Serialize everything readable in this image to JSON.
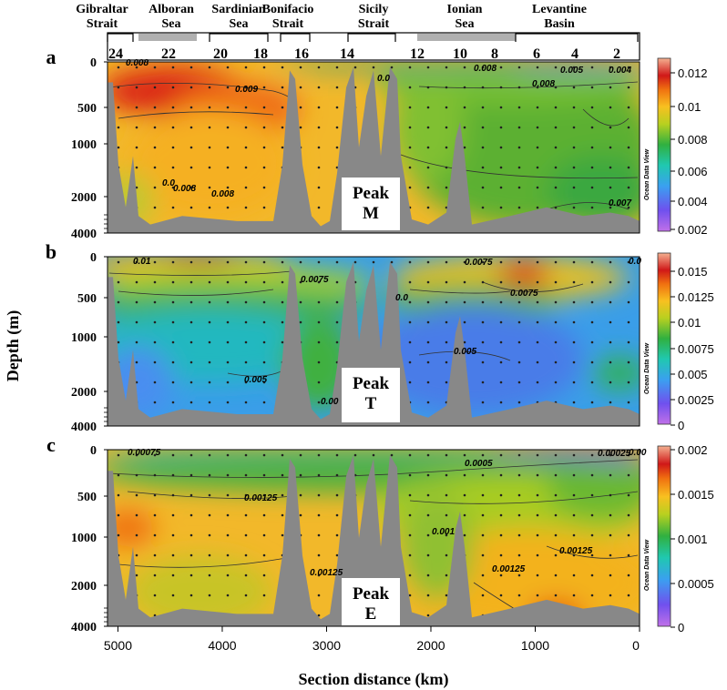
{
  "chart_data": {
    "type": "heatmap",
    "regions": [
      {
        "label": "Gibraltar Strait",
        "lines": [
          "Gibraltar",
          "Strait"
        ]
      },
      {
        "label": "Alboran Sea",
        "lines": [
          "Alboran",
          "Sea"
        ]
      },
      {
        "label": "Sardinian Sea",
        "lines": [
          "Sardinian",
          "Sea"
        ]
      },
      {
        "label": "Bonifacio Strait",
        "lines": [
          "Bonifacio",
          "Strait"
        ]
      },
      {
        "label": "Sicily Strait",
        "lines": [
          "Sicily",
          "Strait"
        ]
      },
      {
        "label": "Ionian Sea",
        "lines": [
          "Ionian",
          "Sea"
        ]
      },
      {
        "label": "Levantine Basin",
        "lines": [
          "Levantine",
          "Basin"
        ]
      }
    ],
    "stations": [
      "24",
      "22",
      "20",
      "18",
      "16",
      "14",
      "12",
      "10",
      "8",
      "6",
      "4",
      "2"
    ],
    "xlabel": "Section distance (km)",
    "ylabel": "Depth (m)",
    "x_ticks": [
      "5000",
      "4000",
      "3000",
      "2000",
      "1000",
      "0"
    ],
    "xlim": [
      5100,
      0
    ],
    "y_ticks": [
      "0",
      "500",
      "1000",
      "2000",
      "4000"
    ],
    "panels": [
      {
        "letter": "a",
        "peak": [
          "Peak",
          "M"
        ],
        "colorbar_ticks": [
          "0.012",
          "0.01",
          "0.008",
          "0.006",
          "0.004",
          "0.002"
        ],
        "colorbar_range": [
          0.001,
          0.013
        ],
        "contour_labels": [
          "0.008",
          "0.009",
          "0.0",
          "0.008",
          "0.008",
          "0.005",
          "0.004",
          "0.008",
          "0.008",
          "0.007",
          "0.0"
        ],
        "watermark": "Ocean Data View"
      },
      {
        "letter": "b",
        "peak": [
          "Peak",
          "T"
        ],
        "colorbar_ticks": [
          "0.015",
          "0.0125",
          "0.01",
          "0.0075",
          "0.005",
          "0.0025",
          "0"
        ],
        "colorbar_range": [
          0,
          0.016
        ],
        "contour_labels": [
          "0.01",
          "0.0075",
          "0.0075",
          "0.0075",
          "0.0",
          "0.005",
          "0.005",
          "0.00",
          "0.0"
        ],
        "watermark": "Ocean Data View"
      },
      {
        "letter": "c",
        "peak": [
          "Peak",
          "E"
        ],
        "colorbar_ticks": [
          "0.002",
          "0.0015",
          "0.001",
          "0.0005",
          "0"
        ],
        "colorbar_range": [
          0,
          0.002
        ],
        "contour_labels": [
          "0.00075",
          "0.00125",
          "0.001",
          "0.0005",
          "0.00025",
          "0.00125",
          "0.00125",
          "0.00125",
          "0.00"
        ],
        "watermark": "Ocean Data View"
      }
    ]
  }
}
